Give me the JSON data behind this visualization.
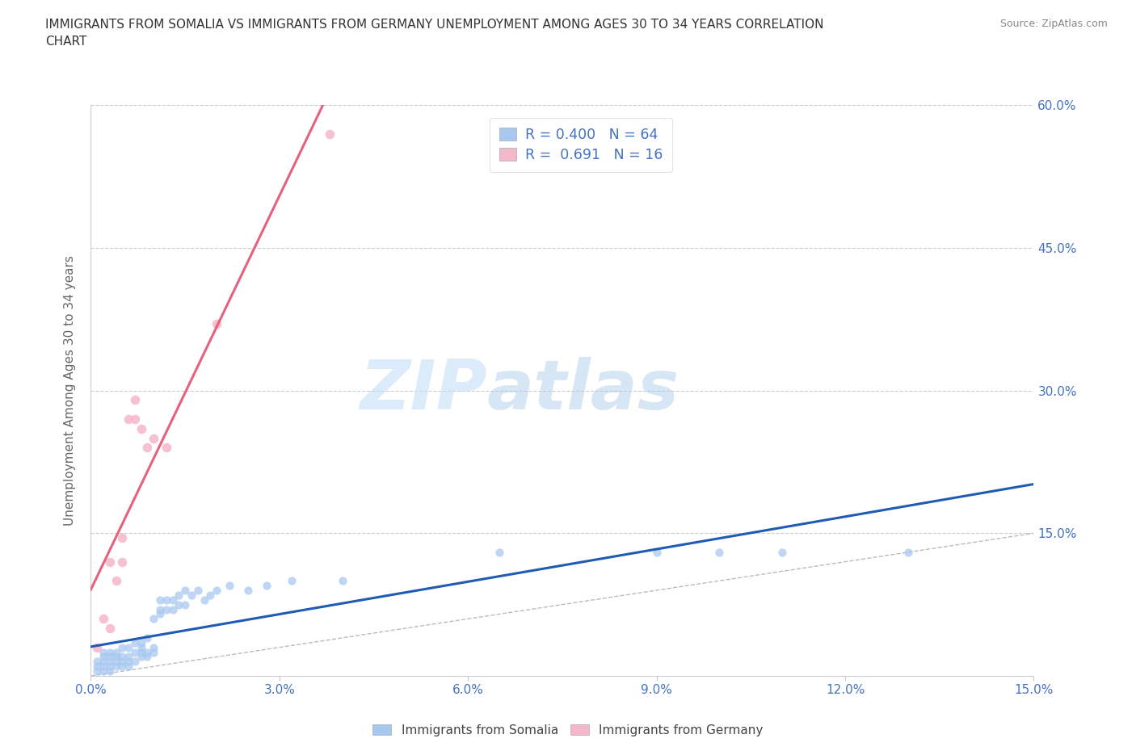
{
  "title": "IMMIGRANTS FROM SOMALIA VS IMMIGRANTS FROM GERMANY UNEMPLOYMENT AMONG AGES 30 TO 34 YEARS CORRELATION\nCHART",
  "source_text": "Source: ZipAtlas.com",
  "ylabel": "Unemployment Among Ages 30 to 34 years",
  "watermark_zip": "ZIP",
  "watermark_atlas": "atlas",
  "xlim": [
    0,
    0.15
  ],
  "ylim": [
    0,
    0.6
  ],
  "xticks": [
    0.0,
    0.03,
    0.06,
    0.09,
    0.12,
    0.15
  ],
  "yticks": [
    0.0,
    0.15,
    0.3,
    0.45,
    0.6
  ],
  "xtick_labels": [
    "0.0%",
    "3.0%",
    "6.0%",
    "9.0%",
    "12.0%",
    "15.0%"
  ],
  "right_ytick_labels": [
    "",
    "15.0%",
    "30.0%",
    "45.0%",
    "60.0%"
  ],
  "somalia_color": "#a8c8f0",
  "germany_color": "#f5b8cb",
  "somalia_line_color": "#1f5bb5",
  "germany_line_color": "#e8607a",
  "diagonal_color": "#bbbbbb",
  "r_somalia": 0.4,
  "n_somalia": 64,
  "r_germany": 0.691,
  "n_germany": 16,
  "legend_label_somalia": "Immigrants from Somalia",
  "legend_label_germany": "Immigrants from Germany",
  "somalia_x": [
    0.001,
    0.001,
    0.001,
    0.002,
    0.002,
    0.002,
    0.002,
    0.002,
    0.003,
    0.003,
    0.003,
    0.003,
    0.003,
    0.004,
    0.004,
    0.004,
    0.004,
    0.005,
    0.005,
    0.005,
    0.005,
    0.006,
    0.006,
    0.006,
    0.006,
    0.007,
    0.007,
    0.007,
    0.008,
    0.008,
    0.008,
    0.008,
    0.009,
    0.009,
    0.009,
    0.01,
    0.01,
    0.01,
    0.011,
    0.011,
    0.011,
    0.012,
    0.012,
    0.013,
    0.013,
    0.014,
    0.014,
    0.015,
    0.015,
    0.016,
    0.017,
    0.018,
    0.019,
    0.02,
    0.022,
    0.025,
    0.028,
    0.032,
    0.04,
    0.065,
    0.09,
    0.1,
    0.11,
    0.13
  ],
  "somalia_y": [
    0.005,
    0.01,
    0.015,
    0.005,
    0.01,
    0.015,
    0.02,
    0.025,
    0.005,
    0.01,
    0.015,
    0.02,
    0.025,
    0.01,
    0.015,
    0.02,
    0.025,
    0.01,
    0.015,
    0.02,
    0.03,
    0.01,
    0.015,
    0.02,
    0.03,
    0.015,
    0.025,
    0.035,
    0.02,
    0.025,
    0.03,
    0.035,
    0.02,
    0.025,
    0.04,
    0.025,
    0.03,
    0.06,
    0.065,
    0.07,
    0.08,
    0.07,
    0.08,
    0.07,
    0.08,
    0.075,
    0.085,
    0.075,
    0.09,
    0.085,
    0.09,
    0.08,
    0.085,
    0.09,
    0.095,
    0.09,
    0.095,
    0.1,
    0.1,
    0.13,
    0.13,
    0.13,
    0.13,
    0.13
  ],
  "germany_x": [
    0.001,
    0.002,
    0.003,
    0.003,
    0.004,
    0.005,
    0.005,
    0.006,
    0.007,
    0.007,
    0.008,
    0.009,
    0.01,
    0.012,
    0.02,
    0.038
  ],
  "germany_y": [
    0.03,
    0.06,
    0.05,
    0.12,
    0.1,
    0.12,
    0.145,
    0.27,
    0.27,
    0.29,
    0.26,
    0.24,
    0.25,
    0.24,
    0.37,
    0.57
  ],
  "background_color": "#ffffff",
  "grid_color": "#cccccc",
  "title_color": "#333333",
  "axis_label_color": "#666666",
  "tick_color": "#4472c4"
}
